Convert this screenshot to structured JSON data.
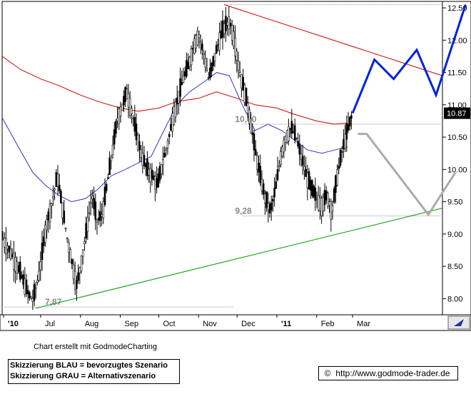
{
  "chart_data": {
    "type": "candlestick",
    "title": "",
    "xlabel": "",
    "ylabel": "",
    "ylim": [
      7.75,
      12.6
    ],
    "grid": false,
    "x_tick_labels": [
      "'10",
      "Jul",
      "Aug",
      "Sep",
      "Oct",
      "Nov",
      "Dec",
      "'11",
      "Feb",
      "Mar"
    ],
    "y_tick_labels": [
      "12.50",
      "12.00",
      "11.50",
      "11.00",
      "10.50",
      "10.00",
      "9.50",
      "9.00",
      "8.50",
      "8.00"
    ],
    "y_tick_values": [
      12.5,
      12.0,
      11.5,
      11.0,
      10.5,
      10.0,
      9.5,
      9.0,
      8.5,
      8.0
    ],
    "last_price_label": "10.87",
    "last_price": 10.87,
    "price_path": [
      [
        "2010-06-01",
        8.95
      ],
      [
        "2010-06-08",
        8.7
      ],
      [
        "2010-06-15",
        8.4
      ],
      [
        "2010-06-22",
        8.05
      ],
      [
        "2010-06-25",
        7.98
      ],
      [
        "2010-06-30",
        8.4
      ],
      [
        "2010-07-05",
        9.1
      ],
      [
        "2010-07-10",
        9.5
      ],
      [
        "2010-07-14",
        9.9
      ],
      [
        "2010-07-18",
        9.4
      ],
      [
        "2010-07-22",
        8.9
      ],
      [
        "2010-07-26",
        8.5
      ],
      [
        "2010-07-29",
        8.2
      ],
      [
        "2010-08-02",
        8.6
      ],
      [
        "2010-08-06",
        9.1
      ],
      [
        "2010-08-10",
        9.6
      ],
      [
        "2010-08-14",
        9.2
      ],
      [
        "2010-08-18",
        9.3
      ],
      [
        "2010-08-22",
        9.8
      ],
      [
        "2010-08-26",
        10.3
      ],
      [
        "2010-08-30",
        10.8
      ],
      [
        "2010-09-03",
        11.0
      ],
      [
        "2010-09-06",
        11.2
      ],
      [
        "2010-09-10",
        10.9
      ],
      [
        "2010-09-14",
        10.5
      ],
      [
        "2010-09-18",
        10.2
      ],
      [
        "2010-09-22",
        10.0
      ],
      [
        "2010-09-26",
        9.9
      ],
      [
        "2010-09-30",
        9.75
      ],
      [
        "2010-10-04",
        10.1
      ],
      [
        "2010-10-08",
        10.4
      ],
      [
        "2010-10-12",
        10.8
      ],
      [
        "2010-10-16",
        11.1
      ],
      [
        "2010-10-20",
        11.4
      ],
      [
        "2010-10-24",
        11.6
      ],
      [
        "2010-10-28",
        11.9
      ],
      [
        "2010-11-01",
        12.1
      ],
      [
        "2010-11-05",
        11.8
      ],
      [
        "2010-11-09",
        11.4
      ],
      [
        "2010-11-13",
        11.7
      ],
      [
        "2010-11-17",
        12.0
      ],
      [
        "2010-11-21",
        12.2
      ],
      [
        "2010-11-25",
        12.3
      ],
      [
        "2010-11-29",
        12.0
      ],
      [
        "2010-12-03",
        11.5
      ],
      [
        "2010-12-07",
        11.2
      ],
      [
        "2010-12-11",
        10.8
      ],
      [
        "2010-12-15",
        10.3
      ],
      [
        "2010-12-19",
        9.9
      ],
      [
        "2010-12-23",
        9.55
      ],
      [
        "2010-12-27",
        9.35
      ],
      [
        "2010-12-31",
        9.7
      ],
      [
        "2011-01-04",
        10.2
      ],
      [
        "2011-01-08",
        10.5
      ],
      [
        "2011-01-12",
        10.65
      ],
      [
        "2011-01-16",
        10.5
      ],
      [
        "2011-01-20",
        10.2
      ],
      [
        "2011-01-24",
        9.9
      ],
      [
        "2011-01-28",
        9.7
      ],
      [
        "2011-02-01",
        9.55
      ],
      [
        "2011-02-05",
        9.45
      ],
      [
        "2011-02-09",
        9.6
      ],
      [
        "2011-02-13",
        9.35
      ],
      [
        "2011-02-17",
        9.9
      ],
      [
        "2011-02-21",
        10.3
      ],
      [
        "2011-02-25",
        10.6
      ],
      [
        "2011-03-01",
        10.87
      ]
    ],
    "series": [
      {
        "name": "",
        "color": "#3333cc",
        "points": [
          [
            "2010-06-01",
            10.8
          ],
          [
            "2010-06-15",
            10.3
          ],
          [
            "2010-06-25",
            9.95
          ],
          [
            "2010-07-05",
            9.75
          ],
          [
            "2010-07-15",
            9.6
          ],
          [
            "2010-07-25",
            9.5
          ],
          [
            "2010-08-05",
            9.55
          ],
          [
            "2010-08-15",
            9.7
          ],
          [
            "2010-08-25",
            9.9
          ],
          [
            "2010-09-05",
            10.0
          ],
          [
            "2010-09-15",
            10.1
          ],
          [
            "2010-09-25",
            10.2
          ],
          [
            "2010-10-05",
            10.6
          ],
          [
            "2010-10-15",
            11.0
          ],
          [
            "2010-10-25",
            11.2
          ],
          [
            "2010-11-05",
            11.35
          ],
          [
            "2010-11-15",
            11.5
          ],
          [
            "2010-11-25",
            11.45
          ],
          [
            "2010-12-05",
            11.0
          ],
          [
            "2010-12-15",
            10.6
          ],
          [
            "2010-12-25",
            10.7
          ],
          [
            "2011-01-05",
            10.6
          ],
          [
            "2011-01-15",
            10.45
          ],
          [
            "2011-01-25",
            10.3
          ],
          [
            "2011-02-05",
            10.25
          ],
          [
            "2011-02-15",
            10.3
          ],
          [
            "2011-02-25",
            10.35
          ]
        ]
      },
      {
        "name": "",
        "color": "#cc0000",
        "points": [
          [
            "2010-06-01",
            11.75
          ],
          [
            "2010-06-15",
            11.55
          ],
          [
            "2010-07-01",
            11.4
          ],
          [
            "2010-07-15",
            11.3
          ],
          [
            "2010-08-01",
            11.15
          ],
          [
            "2010-08-15",
            11.05
          ],
          [
            "2010-09-01",
            10.95
          ],
          [
            "2010-09-15",
            10.9
          ],
          [
            "2010-10-01",
            10.95
          ],
          [
            "2010-10-15",
            11.05
          ],
          [
            "2010-11-01",
            11.1
          ],
          [
            "2010-11-15",
            11.2
          ],
          [
            "2010-12-01",
            11.1
          ],
          [
            "2010-12-15",
            11.0
          ],
          [
            "2011-01-01",
            10.95
          ],
          [
            "2011-01-15",
            10.85
          ],
          [
            "2011-02-01",
            10.75
          ],
          [
            "2011-02-15",
            10.7
          ],
          [
            "2011-02-25",
            10.72
          ]
        ]
      }
    ],
    "trendlines": [
      {
        "color": "#cc0000",
        "from": [
          "2010-11-21",
          12.55
        ],
        "to": [
          "2011-05-10",
          11.45
        ]
      },
      {
        "color": "#009900",
        "from": [
          "2010-06-27",
          7.85
        ],
        "to": [
          "2011-05-10",
          9.4
        ]
      }
    ],
    "levels": [
      {
        "label": "10,70",
        "value": 10.7,
        "color": "#999999",
        "from": "2010-12-05",
        "to": "2011-05-10"
      },
      {
        "label": "9,28",
        "value": 9.28,
        "color": "#999999",
        "from": "2010-12-05",
        "to": "2011-05-10"
      },
      {
        "label": "7,87",
        "value": 7.87,
        "color": "#999999",
        "from": "2010-06-01",
        "to": "2010-11-28"
      },
      {
        "label": "",
        "value": 12.55,
        "color": "#999999",
        "from": "2010-11-21",
        "to": "2011-05-10"
      }
    ],
    "scenarios": [
      {
        "name": "bevorzugtes Szenario",
        "color": "#0022dd",
        "points": [
          [
            "2011-03-01",
            10.87
          ],
          [
            "2011-03-18",
            11.7
          ],
          [
            "2011-04-02",
            11.4
          ],
          [
            "2011-04-20",
            11.85
          ],
          [
            "2011-05-05",
            11.15
          ],
          [
            "2011-05-28",
            12.55
          ]
        ]
      },
      {
        "name": "Alternativszenario",
        "color": "#aaaaaa",
        "points": [
          [
            "2011-03-05",
            10.55
          ],
          [
            "2011-03-12",
            10.55
          ],
          [
            "2011-04-29",
            9.3
          ],
          [
            "2011-05-20",
            9.95
          ]
        ]
      }
    ]
  },
  "caption": "Chart erstellt mit GodmodeCharting",
  "legend": {
    "line1": "Skizzierung BLAU = bevorzugtes Szenario",
    "line2": "Skizzierung GRAU = Alternativszenario"
  },
  "footer": {
    "copyright_symbol": "©",
    "url": "http://www.godmode-trader.de"
  }
}
